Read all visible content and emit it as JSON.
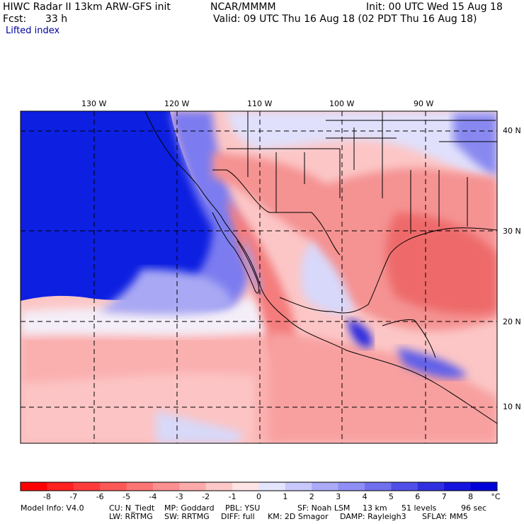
{
  "header": {
    "model_title": "HIWC Radar II 13km ARW-GFS init",
    "org": "NCAR/MMMM",
    "init": "Init: 00 UTC Wed 15 Aug 18",
    "fcst_label": "Fcst:",
    "fcst_value": "33 h",
    "valid": "Valid: 09 UTC Thu 16 Aug 18 (02 PDT Thu 16 Aug 18)",
    "field": "Lifted index"
  },
  "map": {
    "lon_labels": [
      "130 W",
      "120 W",
      "110 W",
      "100 W",
      "90 W"
    ],
    "lat_labels": [
      "40 N",
      "30 N",
      "20 N",
      "10 N"
    ]
  },
  "colorbar": {
    "labels": [
      "-8",
      "-7",
      "-6",
      "-5",
      "-4",
      "-3",
      "-2",
      "-1",
      "0",
      "1",
      "2",
      "3",
      "4",
      "5",
      "6",
      "7",
      "8",
      "°C"
    ],
    "colors": [
      "#ff0000",
      "#ff2020",
      "#fe3c3c",
      "#fd5858",
      "#fc7474",
      "#fb9090",
      "#fcaaaa",
      "#fdc8c8",
      "#fee4e4",
      "#e4e4fe",
      "#c8c8fc",
      "#aaaaf8",
      "#8e8ef4",
      "#7070ee",
      "#5050e8",
      "#3030e0",
      "#1414dc",
      "#0000d8"
    ]
  },
  "footer": {
    "line1": [
      "Model Info: V4.0",
      "CU: N_Tiedt",
      "MP: Goddard",
      "PBL: YSU",
      "SF: Noah LSM",
      "13 km",
      "51 levels",
      "96 sec"
    ],
    "line2": [
      "LW: RRTMG",
      "SW: RRTMG",
      "DIFF: full",
      "KM: 2D Smagor",
      "DAMP: Rayleigh3",
      "SFLAY: MM5"
    ]
  }
}
